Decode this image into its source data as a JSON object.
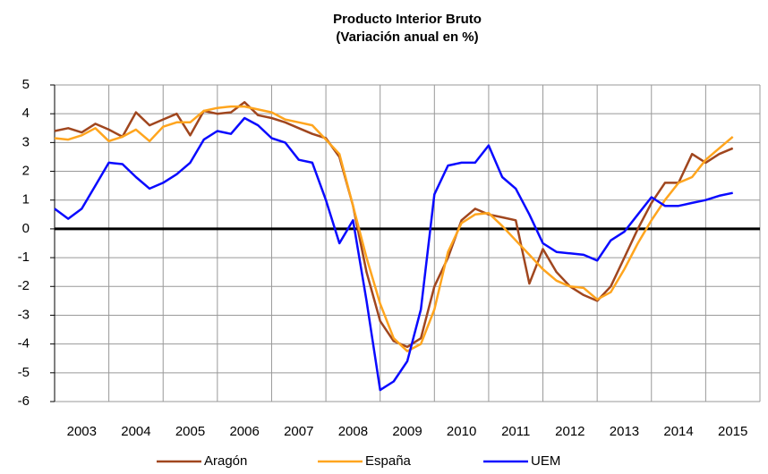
{
  "chart_data": {
    "type": "line",
    "title": "Producto Interior Bruto",
    "subtitle": "(Variación anual en %)",
    "x": [
      2003,
      2003.25,
      2003.5,
      2003.75,
      2004,
      2004.25,
      2004.5,
      2004.75,
      2005,
      2005.25,
      2005.5,
      2005.75,
      2006,
      2006.25,
      2006.5,
      2006.75,
      2007,
      2007.25,
      2007.5,
      2007.75,
      2008,
      2008.25,
      2008.5,
      2008.75,
      2009,
      2009.25,
      2009.5,
      2009.75,
      2010,
      2010.25,
      2010.5,
      2010.75,
      2011,
      2011.25,
      2011.5,
      2011.75,
      2012,
      2012.25,
      2012.5,
      2012.75,
      2013,
      2013.25,
      2013.5,
      2013.75,
      2014,
      2014.25,
      2014.5,
      2014.75,
      2015,
      2015.25,
      2015.5
    ],
    "series": [
      {
        "name": "Aragón",
        "color": "#a0461e",
        "values": [
          3.4,
          3.5,
          3.35,
          3.65,
          3.45,
          3.2,
          4.05,
          3.6,
          3.8,
          4.0,
          3.25,
          4.1,
          4.0,
          4.05,
          4.4,
          3.95,
          3.85,
          3.7,
          3.5,
          3.3,
          3.15,
          2.5,
          0.8,
          -1.5,
          -3.2,
          -3.9,
          -4.1,
          -3.8,
          -2.0,
          -1.0,
          0.3,
          0.7,
          0.5,
          0.4,
          0.3,
          -1.9,
          -0.7,
          -1.5,
          -2.0,
          -2.3,
          -2.5,
          -2.0,
          -1.0,
          0.0,
          0.9,
          1.6,
          1.6,
          2.6,
          2.3,
          2.6,
          2.8
        ]
      },
      {
        "name": "España",
        "color": "#ffa51e",
        "values": [
          3.15,
          3.1,
          3.25,
          3.5,
          3.05,
          3.2,
          3.45,
          3.05,
          3.55,
          3.7,
          3.7,
          4.1,
          4.2,
          4.25,
          4.25,
          4.15,
          4.05,
          3.8,
          3.7,
          3.6,
          3.1,
          2.6,
          0.8,
          -1.0,
          -2.6,
          -3.8,
          -4.25,
          -4.0,
          -2.8,
          -0.8,
          0.2,
          0.5,
          0.55,
          0.1,
          -0.4,
          -0.9,
          -1.4,
          -1.8,
          -2.0,
          -2.05,
          -2.45,
          -2.2,
          -1.4,
          -0.5,
          0.3,
          1.0,
          1.6,
          1.8,
          2.4,
          2.8,
          3.2
        ]
      },
      {
        "name": "UEM",
        "color": "#0a0aff",
        "values": [
          0.7,
          0.35,
          0.7,
          1.5,
          2.3,
          2.25,
          1.8,
          1.4,
          1.6,
          1.9,
          2.3,
          3.1,
          3.4,
          3.3,
          3.85,
          3.6,
          3.15,
          3.0,
          2.4,
          2.3,
          1.0,
          -0.5,
          0.3,
          -2.5,
          -5.6,
          -5.3,
          -4.6,
          -2.8,
          1.2,
          2.2,
          2.3,
          2.3,
          2.9,
          1.8,
          1.4,
          0.5,
          -0.5,
          -0.8,
          -0.85,
          -0.9,
          -1.1,
          -0.4,
          -0.1,
          0.5,
          1.1,
          0.8,
          0.8,
          0.9,
          1.0,
          1.15,
          1.25
        ]
      }
    ],
    "xlim": [
      2003,
      2016
    ],
    "xticks": [
      {
        "value": 2003.5,
        "label": "2003"
      },
      {
        "value": 2004.5,
        "label": "2004"
      },
      {
        "value": 2005.5,
        "label": "2005"
      },
      {
        "value": 2006.5,
        "label": "2006"
      },
      {
        "value": 2007.5,
        "label": "2007"
      },
      {
        "value": 2008.5,
        "label": "2008"
      },
      {
        "value": 2009.5,
        "label": "2009"
      },
      {
        "value": 2010.5,
        "label": "2010"
      },
      {
        "value": 2011.5,
        "label": "2011"
      },
      {
        "value": 2012.5,
        "label": "2012"
      },
      {
        "value": 2013.5,
        "label": "2013"
      },
      {
        "value": 2014.5,
        "label": "2014"
      },
      {
        "value": 2015.5,
        "label": "2015"
      }
    ],
    "ylim": [
      -6,
      5
    ],
    "yticks": [
      -6,
      -5,
      -4,
      -3,
      -2,
      -1,
      0,
      1,
      2,
      3,
      4,
      5
    ],
    "grid": true,
    "legend": "bottom"
  }
}
